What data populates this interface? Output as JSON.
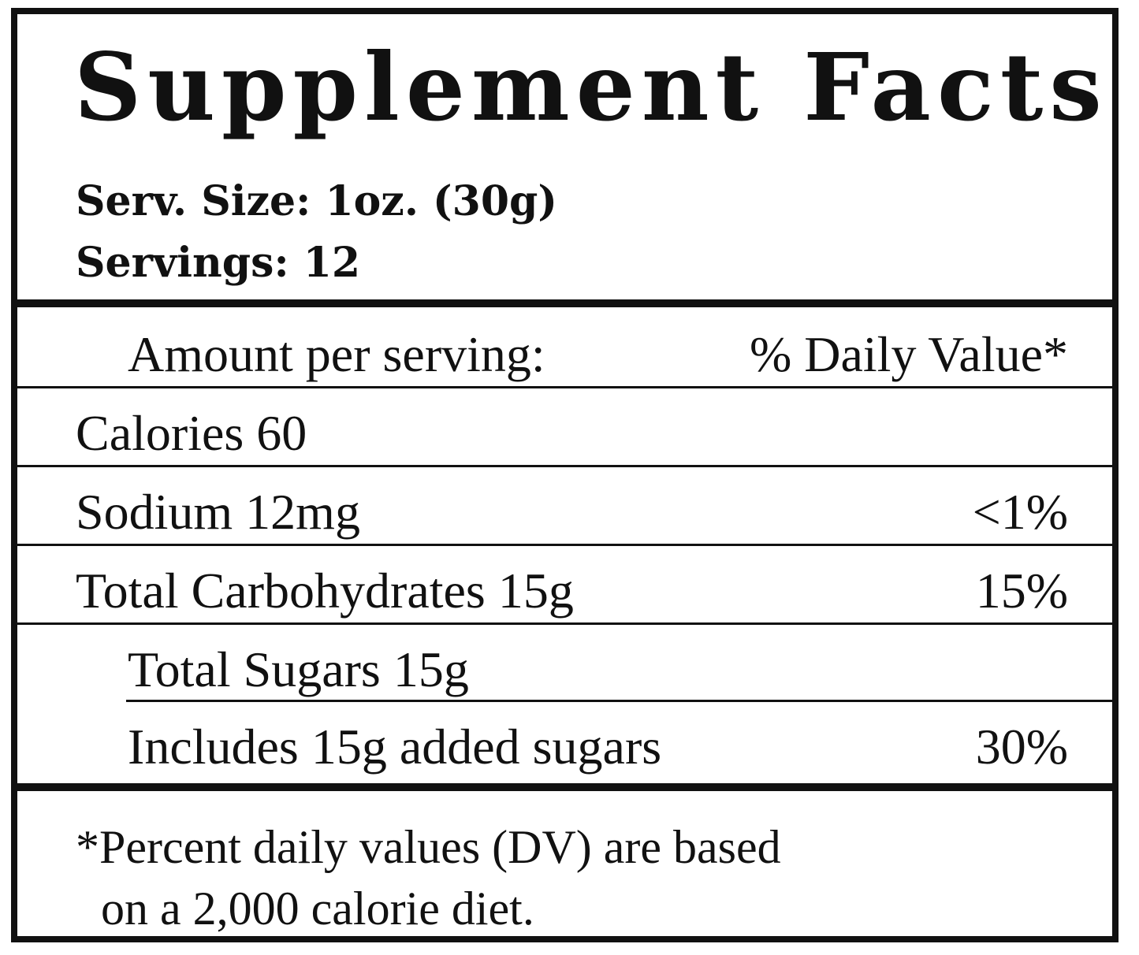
{
  "label": {
    "title": "Supplement Facts",
    "serving_size": "Serv. Size: 1oz. (30g)",
    "servings": "Servings: 12",
    "amount_header": "Amount per serving:",
    "dv_header": "% Daily Value*",
    "rows": [
      {
        "name": "Calories 60",
        "dv": ""
      },
      {
        "name": "Sodium 12mg",
        "dv": "<1%"
      },
      {
        "name": "Total Carbohydrates 15g",
        "dv": "15%"
      },
      {
        "name": "Total Sugars 15g",
        "dv": ""
      },
      {
        "name": "Includes 15g added sugars",
        "dv": "30%"
      }
    ],
    "footnote_line1": "*Percent daily values (DV) are based",
    "footnote_line2": "on a 2,000 calorie diet."
  }
}
